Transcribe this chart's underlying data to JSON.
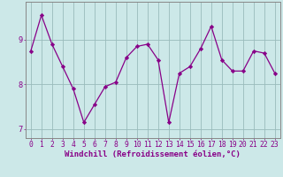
{
  "x": [
    0,
    1,
    2,
    3,
    4,
    5,
    6,
    7,
    8,
    9,
    10,
    11,
    12,
    13,
    14,
    15,
    16,
    17,
    18,
    19,
    20,
    21,
    22,
    23
  ],
  "y": [
    8.75,
    9.55,
    8.9,
    8.4,
    7.9,
    7.15,
    7.55,
    7.95,
    8.05,
    8.6,
    8.85,
    8.9,
    8.55,
    7.15,
    8.25,
    8.4,
    8.8,
    9.3,
    8.55,
    8.3,
    8.3,
    8.75,
    8.7,
    8.25
  ],
  "line_color": "#880088",
  "marker": "D",
  "marker_size": 2.2,
  "bg_color": "#cce8e8",
  "grid_color": "#99bbbb",
  "axis_color": "#888888",
  "xlabel": "Windchill (Refroidissement éolien,°C)",
  "ylabel": "",
  "xlim": [
    -0.5,
    23.5
  ],
  "ylim": [
    6.8,
    9.85
  ],
  "yticks": [
    7,
    8,
    9
  ],
  "xticks": [
    0,
    1,
    2,
    3,
    4,
    5,
    6,
    7,
    8,
    9,
    10,
    11,
    12,
    13,
    14,
    15,
    16,
    17,
    18,
    19,
    20,
    21,
    22,
    23
  ],
  "xlabel_fontsize": 6.5,
  "tick_fontsize": 5.8
}
